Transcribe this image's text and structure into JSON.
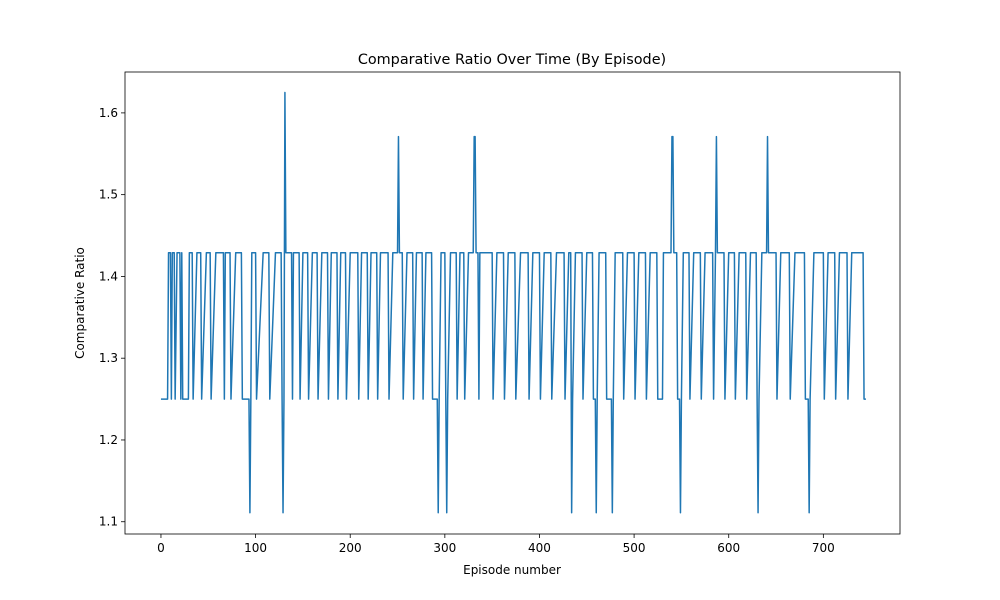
{
  "chart_data": {
    "type": "line",
    "title": "Comparative Ratio Over Time (By Episode)",
    "x_label": "Episode number",
    "y_label": "Comparative Ratio",
    "color": "#1f77b4",
    "xlim": [
      -38,
      781
    ],
    "ylim": [
      1.085,
      1.65
    ],
    "xticks": [
      0,
      100,
      200,
      300,
      400,
      500,
      600,
      700
    ],
    "yticks": [
      1.1,
      1.2,
      1.3,
      1.4,
      1.5,
      1.6
    ],
    "x": [
      0,
      7,
      8,
      10,
      11,
      12,
      14,
      15,
      17,
      20,
      21,
      22,
      23,
      29,
      30,
      33,
      34,
      38,
      42,
      43,
      48,
      52,
      53,
      58,
      66,
      67,
      68,
      73,
      74,
      79,
      85,
      86,
      93,
      94,
      95,
      96,
      100,
      101,
      108,
      114,
      115,
      121,
      127,
      128,
      129,
      130,
      131,
      132,
      138,
      139,
      140,
      146,
      147,
      150,
      155,
      156,
      160,
      165,
      166,
      170,
      176,
      177,
      180,
      186,
      187,
      190,
      195,
      196,
      200,
      208,
      209,
      212,
      218,
      219,
      222,
      228,
      229,
      232,
      240,
      241,
      245,
      250,
      251,
      252,
      255,
      256,
      260,
      266,
      267,
      270,
      276,
      277,
      280,
      286,
      287,
      292,
      293,
      294,
      296,
      300,
      301,
      302,
      303,
      306,
      312,
      313,
      316,
      320,
      321,
      325,
      330,
      331,
      332,
      333,
      335,
      336,
      337,
      350,
      351,
      355,
      362,
      363,
      367,
      374,
      375,
      380,
      388,
      389,
      393,
      400,
      401,
      405,
      412,
      413,
      418,
      426,
      427,
      431,
      433,
      434,
      435,
      438,
      445,
      446,
      450,
      456,
      457,
      459,
      460,
      461,
      463,
      470,
      471,
      476,
      477,
      478,
      480,
      488,
      489,
      493,
      500,
      501,
      505,
      512,
      513,
      517,
      524,
      525,
      530,
      531,
      539,
      540,
      541,
      542,
      545,
      546,
      548,
      549,
      550,
      552,
      558,
      559,
      563,
      570,
      571,
      575,
      583,
      584,
      586,
      587,
      588,
      595,
      596,
      600,
      606,
      607,
      611,
      618,
      619,
      623,
      629,
      630,
      631,
      632,
      635,
      640,
      641,
      642,
      650,
      651,
      655,
      664,
      665,
      670,
      680,
      681,
      684,
      685,
      686,
      690,
      700,
      701,
      705,
      712,
      713,
      717,
      725,
      726,
      730,
      742,
      743,
      745
    ],
    "values": [
      1.25,
      1.25,
      1.429,
      1.429,
      1.25,
      1.429,
      1.429,
      1.25,
      1.429,
      1.429,
      1.25,
      1.429,
      1.25,
      1.25,
      1.429,
      1.429,
      1.25,
      1.429,
      1.429,
      1.25,
      1.429,
      1.429,
      1.25,
      1.429,
      1.429,
      1.25,
      1.429,
      1.429,
      1.25,
      1.429,
      1.429,
      1.25,
      1.25,
      1.111,
      1.25,
      1.429,
      1.429,
      1.25,
      1.429,
      1.429,
      1.25,
      1.429,
      1.429,
      1.25,
      1.111,
      1.25,
      1.625,
      1.429,
      1.429,
      1.25,
      1.429,
      1.429,
      1.25,
      1.429,
      1.429,
      1.25,
      1.429,
      1.429,
      1.25,
      1.429,
      1.429,
      1.25,
      1.429,
      1.429,
      1.25,
      1.429,
      1.429,
      1.25,
      1.429,
      1.429,
      1.25,
      1.429,
      1.429,
      1.25,
      1.429,
      1.429,
      1.25,
      1.429,
      1.429,
      1.25,
      1.429,
      1.429,
      1.571,
      1.429,
      1.429,
      1.25,
      1.429,
      1.429,
      1.25,
      1.429,
      1.429,
      1.25,
      1.429,
      1.429,
      1.25,
      1.25,
      1.111,
      1.25,
      1.429,
      1.429,
      1.25,
      1.111,
      1.25,
      1.429,
      1.429,
      1.25,
      1.429,
      1.429,
      1.25,
      1.429,
      1.429,
      1.571,
      1.571,
      1.429,
      1.429,
      1.25,
      1.429,
      1.429,
      1.25,
      1.429,
      1.429,
      1.25,
      1.429,
      1.429,
      1.25,
      1.429,
      1.429,
      1.25,
      1.429,
      1.429,
      1.25,
      1.429,
      1.429,
      1.25,
      1.429,
      1.429,
      1.25,
      1.429,
      1.429,
      1.111,
      1.25,
      1.429,
      1.429,
      1.25,
      1.429,
      1.429,
      1.25,
      1.25,
      1.111,
      1.25,
      1.429,
      1.429,
      1.25,
      1.25,
      1.111,
      1.25,
      1.429,
      1.429,
      1.25,
      1.429,
      1.429,
      1.25,
      1.429,
      1.429,
      1.25,
      1.429,
      1.429,
      1.25,
      1.25,
      1.429,
      1.429,
      1.571,
      1.571,
      1.429,
      1.429,
      1.25,
      1.25,
      1.111,
      1.25,
      1.429,
      1.429,
      1.25,
      1.429,
      1.429,
      1.25,
      1.429,
      1.429,
      1.25,
      1.429,
      1.571,
      1.429,
      1.429,
      1.25,
      1.429,
      1.429,
      1.25,
      1.429,
      1.429,
      1.25,
      1.429,
      1.429,
      1.25,
      1.111,
      1.25,
      1.429,
      1.429,
      1.571,
      1.429,
      1.429,
      1.25,
      1.429,
      1.429,
      1.25,
      1.429,
      1.429,
      1.25,
      1.25,
      1.111,
      1.25,
      1.429,
      1.429,
      1.25,
      1.429,
      1.429,
      1.25,
      1.429,
      1.429,
      1.25,
      1.429,
      1.429,
      1.25,
      1.25
    ]
  }
}
